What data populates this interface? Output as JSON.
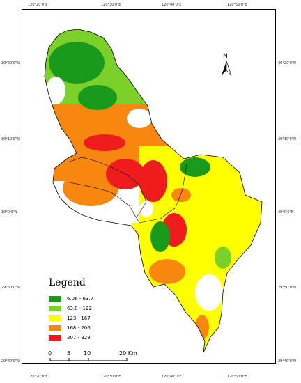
{
  "map": {
    "north_label": "N",
    "legend": {
      "title": "Legend",
      "classes": [
        {
          "label": "6.06 - 63.7",
          "color": "#1a9a1a"
        },
        {
          "label": "63.8 - 122",
          "color": "#7bd12a"
        },
        {
          "label": "123 - 167",
          "color": "#ffff00"
        },
        {
          "label": "168 - 206",
          "color": "#f7870f"
        },
        {
          "label": "207 - 328",
          "color": "#ee1c1c"
        }
      ]
    },
    "scale_bar": {
      "labels": [
        "0",
        "5",
        "10",
        "20 Km"
      ]
    },
    "top_ticks": [
      "120°20'0\"E",
      "120°30'0\"E",
      "120°40'0\"E",
      "120°50'0\"E"
    ],
    "bottom_ticks": [
      "120°20'0\"E",
      "120°30'0\"E",
      "120°40'0\"E",
      "120°50'0\"E"
    ],
    "left_ticks": [
      "30°20'0\"N",
      "30°10'0\"N",
      "30°0'0\"N",
      "29°50'0\"N",
      "29°40'0\"N"
    ],
    "right_ticks": [
      "30°20'0\"N",
      "30°10'0\"N",
      "30°0'0\"N",
      "29°50'0\"N",
      "29°40'0\"N"
    ]
  }
}
